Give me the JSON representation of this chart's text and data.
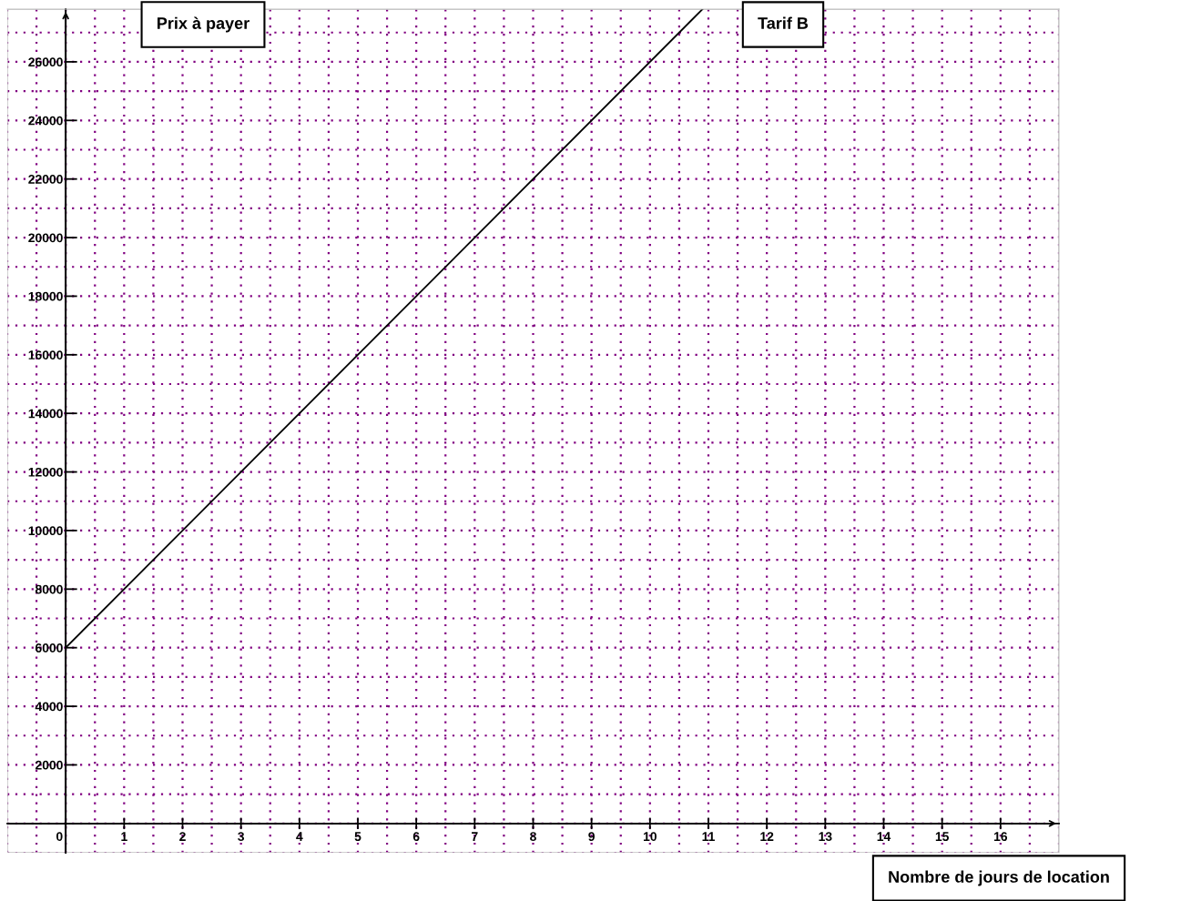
{
  "chart_data": {
    "type": "line",
    "ylabel": "Prix à payer",
    "xlabel": "Nombre de jours de location",
    "x": [
      0,
      10.9
    ],
    "series": [
      {
        "name": "Tarif B",
        "color": "#000000",
        "values": [
          6000,
          27800
        ]
      }
    ],
    "xlim": [
      -1,
      17
    ],
    "xticks": [
      0,
      1,
      2,
      3,
      4,
      5,
      6,
      7,
      8,
      9,
      10,
      11,
      12,
      13,
      14,
      15,
      16
    ],
    "ylim": [
      -1000,
      27800
    ],
    "yticks": [
      2000,
      4000,
      6000,
      8000,
      10000,
      12000,
      14000,
      16000,
      18000,
      20000,
      22000,
      24000,
      26000
    ],
    "grid": true,
    "line_style": "solid",
    "marker": "none",
    "legend": false
  }
}
